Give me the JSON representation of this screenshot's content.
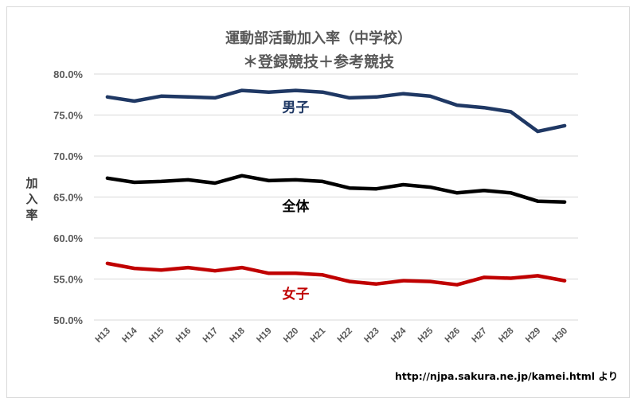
{
  "title": {
    "line1": "運動部活動加入率（中学校）",
    "line2": "＊登録競技＋参考競技"
  },
  "source_text": "http://njpa.sakura.ne.jp/kamei.html  より",
  "chart_data": {
    "type": "line",
    "title": "運動部活動加入率（中学校） ＊登録競技＋参考競技",
    "ylabel": "加入率",
    "xlabel": "",
    "ylim": [
      0.5,
      0.8
    ],
    "yticks": [
      0.5,
      0.55,
      0.6,
      0.65,
      0.7,
      0.75,
      0.8
    ],
    "ytick_labels": [
      "50.0%",
      "55.0%",
      "60.0%",
      "65.0%",
      "70.0%",
      "75.0%",
      "80.0%"
    ],
    "grid": true,
    "categories": [
      "H13",
      "H14",
      "H15",
      "H16",
      "H17",
      "H18",
      "H19",
      "H20",
      "H21",
      "H22",
      "H23",
      "H24",
      "H25",
      "H26",
      "H27",
      "H28",
      "H29",
      "H30"
    ],
    "series": [
      {
        "name": "男子",
        "color": "#1f3864",
        "values": [
          0.772,
          0.767,
          0.773,
          0.772,
          0.771,
          0.78,
          0.778,
          0.78,
          0.778,
          0.771,
          0.772,
          0.776,
          0.773,
          0.762,
          0.759,
          0.754,
          0.73,
          0.737
        ]
      },
      {
        "name": "全体",
        "color": "#000000",
        "values": [
          0.673,
          0.668,
          0.669,
          0.671,
          0.667,
          0.676,
          0.67,
          0.671,
          0.669,
          0.661,
          0.66,
          0.665,
          0.662,
          0.655,
          0.658,
          0.655,
          0.645,
          0.644
        ]
      },
      {
        "name": "女子",
        "color": "#c00000",
        "values": [
          0.569,
          0.563,
          0.561,
          0.564,
          0.56,
          0.564,
          0.557,
          0.557,
          0.555,
          0.547,
          0.544,
          0.548,
          0.547,
          0.543,
          0.552,
          0.551,
          0.554,
          0.548
        ]
      }
    ]
  }
}
